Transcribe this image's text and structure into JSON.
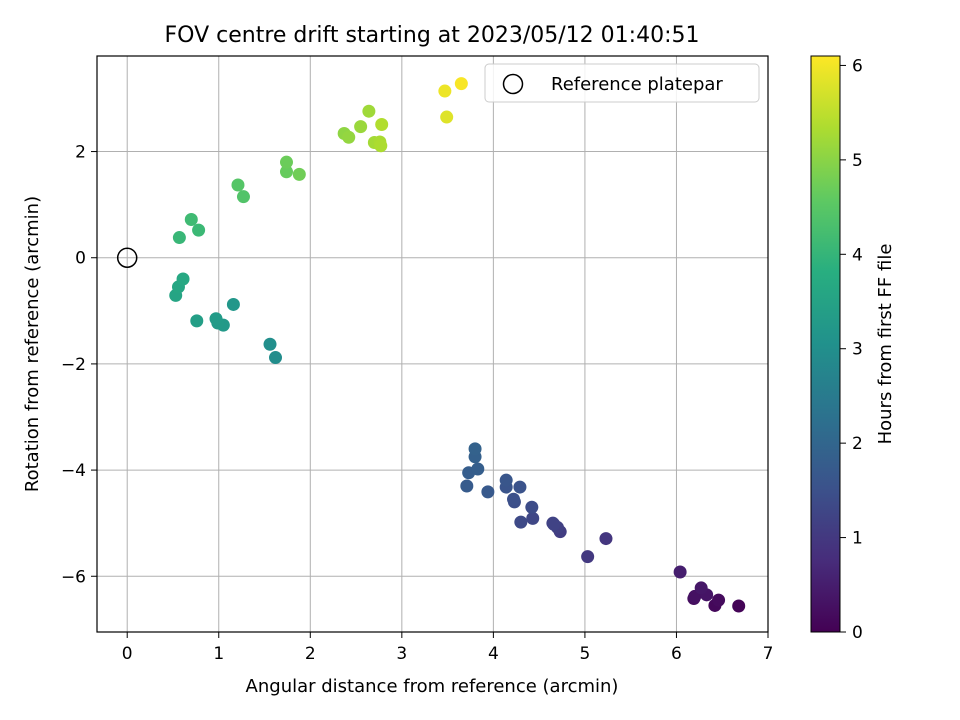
{
  "chart_data": {
    "type": "scatter",
    "title": "FOV centre drift starting at 2023/05/12 01:40:51",
    "xlabel": "Angular distance from reference (arcmin)",
    "ylabel": "Rotation from reference (arcmin)",
    "xlim": [
      -0.33,
      7.0
    ],
    "ylim": [
      -7.05,
      3.8
    ],
    "xticks": [
      0,
      1,
      2,
      3,
      4,
      5,
      6,
      7
    ],
    "yticks": [
      -6,
      -4,
      -2,
      0,
      2
    ],
    "grid": true,
    "legend": {
      "position": "top-right",
      "entries": [
        "Reference platepar"
      ]
    },
    "reference_point": {
      "x": 0,
      "y": 0,
      "label": "Reference platepar"
    },
    "colorbar": {
      "label": "Hours from first FF file",
      "range": [
        0,
        6.1
      ],
      "ticks": [
        0,
        1,
        2,
        3,
        4,
        5,
        6
      ],
      "colormap": "viridis"
    },
    "series": [
      {
        "points": [
          {
            "x": 6.68,
            "y": -6.56,
            "c": 0.05
          },
          {
            "x": 6.42,
            "y": -6.55,
            "c": 0.12
          },
          {
            "x": 6.46,
            "y": -6.45,
            "c": 0.18
          },
          {
            "x": 6.19,
            "y": -6.42,
            "c": 0.22
          },
          {
            "x": 6.2,
            "y": -6.38,
            "c": 0.28
          },
          {
            "x": 6.33,
            "y": -6.35,
            "c": 0.33
          },
          {
            "x": 6.27,
            "y": -6.22,
            "c": 0.38
          },
          {
            "x": 6.04,
            "y": -5.92,
            "c": 0.5
          },
          {
            "x": 5.23,
            "y": -5.29,
            "c": 0.95
          },
          {
            "x": 5.03,
            "y": -5.63,
            "c": 1.0
          },
          {
            "x": 4.73,
            "y": -5.16,
            "c": 1.1
          },
          {
            "x": 4.7,
            "y": -5.08,
            "c": 1.15
          },
          {
            "x": 4.65,
            "y": -5.0,
            "c": 1.2
          },
          {
            "x": 4.66,
            "y": -5.02,
            "c": 1.22
          },
          {
            "x": 4.43,
            "y": -4.91,
            "c": 1.3
          },
          {
            "x": 4.3,
            "y": -4.98,
            "c": 1.35
          },
          {
            "x": 4.42,
            "y": -4.7,
            "c": 1.4
          },
          {
            "x": 4.23,
            "y": -4.6,
            "c": 1.45
          },
          {
            "x": 4.22,
            "y": -4.55,
            "c": 1.48
          },
          {
            "x": 4.29,
            "y": -4.32,
            "c": 1.55
          },
          {
            "x": 4.14,
            "y": -4.32,
            "c": 1.58
          },
          {
            "x": 4.14,
            "y": -4.19,
            "c": 1.62
          },
          {
            "x": 3.94,
            "y": -4.41,
            "c": 1.7
          },
          {
            "x": 3.71,
            "y": -4.3,
            "c": 1.75
          },
          {
            "x": 3.73,
            "y": -4.05,
            "c": 1.78
          },
          {
            "x": 3.83,
            "y": -3.98,
            "c": 1.82
          },
          {
            "x": 3.8,
            "y": -3.75,
            "c": 1.86
          },
          {
            "x": 3.8,
            "y": -3.6,
            "c": 1.9
          },
          {
            "x": 1.62,
            "y": -1.88,
            "c": 2.95
          },
          {
            "x": 1.56,
            "y": -1.63,
            "c": 3.0
          },
          {
            "x": 1.16,
            "y": -0.88,
            "c": 3.2
          },
          {
            "x": 1.05,
            "y": -1.27,
            "c": 3.25
          },
          {
            "x": 0.99,
            "y": -1.23,
            "c": 3.28
          },
          {
            "x": 0.97,
            "y": -1.15,
            "c": 3.3
          },
          {
            "x": 0.76,
            "y": -1.19,
            "c": 3.4
          },
          {
            "x": 0.53,
            "y": -0.71,
            "c": 3.55
          },
          {
            "x": 0.56,
            "y": -0.55,
            "c": 3.6
          },
          {
            "x": 0.61,
            "y": -0.4,
            "c": 3.65
          },
          {
            "x": 0.57,
            "y": 0.38,
            "c": 4.05
          },
          {
            "x": 0.78,
            "y": 0.52,
            "c": 4.1
          },
          {
            "x": 0.7,
            "y": 0.72,
            "c": 4.15
          },
          {
            "x": 1.27,
            "y": 1.15,
            "c": 4.4
          },
          {
            "x": 1.21,
            "y": 1.37,
            "c": 4.45
          },
          {
            "x": 1.74,
            "y": 1.62,
            "c": 4.65
          },
          {
            "x": 1.74,
            "y": 1.8,
            "c": 4.7
          },
          {
            "x": 1.88,
            "y": 1.57,
            "c": 4.75
          },
          {
            "x": 2.37,
            "y": 2.34,
            "c": 5.05
          },
          {
            "x": 2.42,
            "y": 2.27,
            "c": 5.1
          },
          {
            "x": 2.55,
            "y": 2.47,
            "c": 5.15
          },
          {
            "x": 2.64,
            "y": 2.76,
            "c": 5.2
          },
          {
            "x": 2.7,
            "y": 2.17,
            "c": 5.25
          },
          {
            "x": 2.76,
            "y": 2.18,
            "c": 5.3
          },
          {
            "x": 2.77,
            "y": 2.11,
            "c": 5.33
          },
          {
            "x": 2.78,
            "y": 2.51,
            "c": 5.38
          },
          {
            "x": 3.49,
            "y": 2.65,
            "c": 5.8
          },
          {
            "x": 3.47,
            "y": 3.14,
            "c": 5.95
          },
          {
            "x": 3.65,
            "y": 3.28,
            "c": 6.05
          }
        ]
      }
    ]
  }
}
